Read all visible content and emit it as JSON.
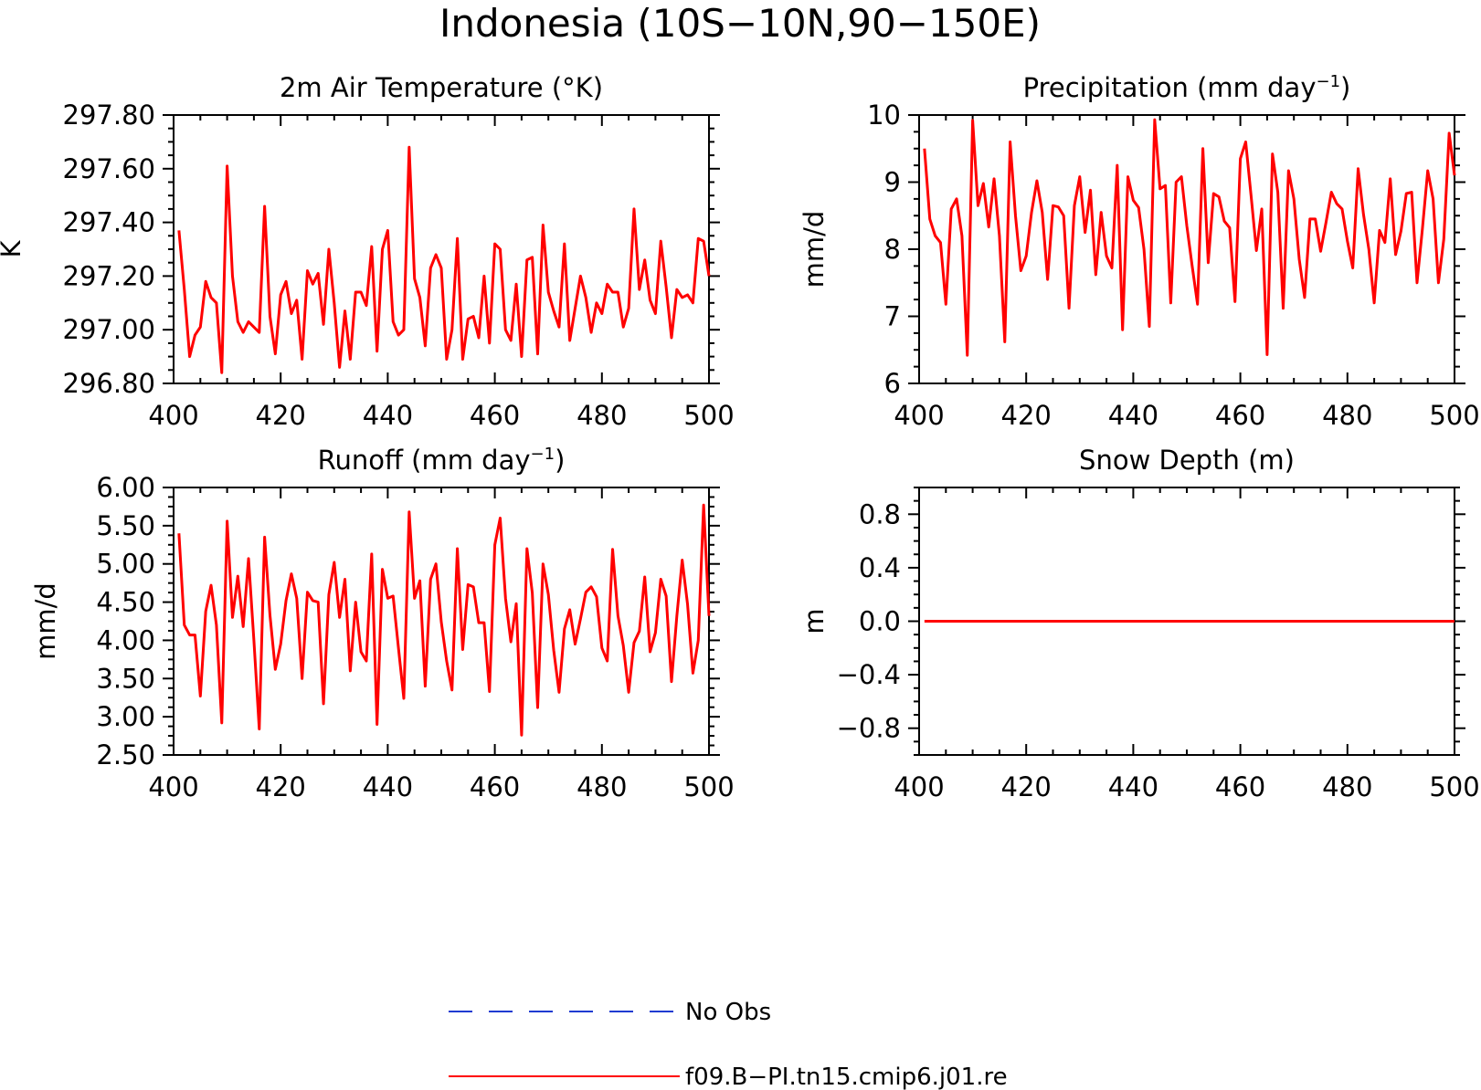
{
  "figure": {
    "title": "Indonesia (10S−10N,90−150E)"
  },
  "legend": {
    "placement": "bottom-center",
    "entries": [
      {
        "label": "No Obs",
        "color": "#1f3bd1",
        "style": "dashed"
      },
      {
        "label": "f09.B−PI.tn15.cmip6.j01.re",
        "color": "#ff0000",
        "style": "solid"
      }
    ]
  },
  "chart_data": [
    {
      "type": "line",
      "title_main": "2m Air Temperature (°K)",
      "title_sup": "",
      "title_tail": "",
      "ylabel": "K",
      "xlim": [
        400,
        500
      ],
      "ylim": [
        296.8,
        297.8
      ],
      "xticks": [
        400,
        420,
        440,
        460,
        480,
        500
      ],
      "yticks": [
        296.8,
        297.0,
        297.2,
        297.4,
        297.6,
        297.8
      ],
      "ytick_labels": [
        "296.80",
        "297.00",
        "297.20",
        "297.40",
        "297.60",
        "297.80"
      ],
      "xtick_labels": [
        "400",
        "420",
        "440",
        "460",
        "480",
        "500"
      ],
      "series": [
        {
          "color": "#ff0000",
          "x_start": 401,
          "values": [
            297.37,
            297.15,
            296.9,
            296.98,
            297.01,
            297.18,
            297.12,
            297.1,
            296.84,
            297.61,
            297.2,
            297.03,
            296.99,
            297.03,
            297.01,
            296.99,
            297.46,
            297.05,
            296.91,
            297.13,
            297.18,
            297.06,
            297.11,
            296.89,
            297.22,
            297.17,
            297.21,
            297.02,
            297.3,
            297.1,
            296.86,
            297.07,
            296.89,
            297.14,
            297.14,
            297.09,
            297.31,
            296.92,
            297.3,
            297.37,
            297.03,
            296.98,
            297.0,
            297.68,
            297.19,
            297.12,
            296.94,
            297.23,
            297.28,
            297.23,
            296.89,
            297.0,
            297.34,
            296.89,
            297.04,
            297.05,
            296.97,
            297.2,
            296.95,
            297.32,
            297.3,
            297.0,
            296.96,
            297.17,
            296.9,
            297.26,
            297.27,
            296.91,
            297.39,
            297.14,
            297.07,
            297.01,
            297.32,
            296.96,
            297.08,
            297.2,
            297.12,
            296.99,
            297.1,
            297.06,
            297.17,
            297.14,
            297.14,
            297.01,
            297.08,
            297.45,
            297.15,
            297.26,
            297.11,
            297.06,
            297.33,
            297.16,
            296.97,
            297.15,
            297.12,
            297.13,
            297.1,
            297.34,
            297.33,
            297.2
          ]
        }
      ]
    },
    {
      "type": "line",
      "title_main": "Precipitation (mm day",
      "title_sup": "−1",
      "title_tail": ")",
      "ylabel": "mm/d",
      "xlim": [
        400,
        500
      ],
      "ylim": [
        6,
        10
      ],
      "xticks": [
        400,
        420,
        440,
        460,
        480,
        500
      ],
      "yticks": [
        6,
        7,
        8,
        9,
        10
      ],
      "ytick_labels": [
        "6",
        "7",
        "8",
        "9",
        "10"
      ],
      "xtick_labels": [
        "400",
        "420",
        "440",
        "460",
        "480",
        "500"
      ],
      "series": [
        {
          "color": "#ff0000",
          "x_start": 401,
          "values": [
            9.5,
            8.45,
            8.2,
            8.1,
            7.18,
            8.6,
            8.75,
            8.2,
            6.42,
            9.92,
            8.65,
            8.98,
            8.33,
            9.05,
            8.2,
            6.62,
            9.6,
            8.5,
            7.68,
            7.9,
            8.55,
            9.02,
            8.55,
            7.55,
            8.65,
            8.63,
            8.5,
            7.12,
            8.65,
            9.08,
            8.25,
            8.88,
            7.62,
            8.55,
            7.9,
            7.72,
            9.25,
            6.8,
            9.08,
            8.73,
            8.62,
            8.0,
            6.85,
            9.93,
            8.9,
            8.95,
            7.2,
            9.0,
            9.08,
            8.35,
            7.75,
            7.18,
            9.5,
            7.8,
            8.83,
            8.78,
            8.42,
            8.32,
            7.22,
            9.35,
            9.6,
            8.8,
            7.98,
            8.6,
            6.43,
            9.42,
            8.85,
            7.12,
            9.17,
            8.75,
            7.85,
            7.28,
            8.45,
            8.45,
            7.97,
            8.4,
            8.85,
            8.68,
            8.6,
            8.12,
            7.72,
            9.2,
            8.52,
            8.0,
            7.2,
            8.28,
            8.1,
            9.05,
            7.92,
            8.27,
            8.83,
            8.85,
            7.5,
            8.3,
            9.17,
            8.75,
            7.5,
            8.15,
            9.73,
            9.1
          ]
        }
      ]
    },
    {
      "type": "line",
      "title_main": "Runoff (mm day",
      "title_sup": "−1",
      "title_tail": ")",
      "ylabel": "mm/d",
      "xlim": [
        400,
        500
      ],
      "ylim": [
        2.5,
        6.0
      ],
      "xticks": [
        400,
        420,
        440,
        460,
        480,
        500
      ],
      "yticks": [
        2.5,
        3.0,
        3.5,
        4.0,
        4.5,
        5.0,
        5.5,
        6.0
      ],
      "ytick_labels": [
        "2.50",
        "3.00",
        "3.50",
        "4.00",
        "4.50",
        "5.00",
        "5.50",
        "6.00"
      ],
      "xtick_labels": [
        "400",
        "420",
        "440",
        "460",
        "480",
        "500"
      ],
      "series": [
        {
          "color": "#ff0000",
          "x_start": 401,
          "values": [
            5.4,
            4.2,
            4.07,
            4.07,
            3.27,
            4.38,
            4.72,
            4.2,
            2.92,
            5.56,
            4.3,
            4.84,
            4.18,
            5.07,
            4.0,
            2.84,
            5.35,
            4.33,
            3.62,
            3.95,
            4.52,
            4.87,
            4.55,
            3.5,
            4.63,
            4.52,
            4.5,
            3.17,
            4.6,
            5.02,
            4.3,
            4.8,
            3.6,
            4.5,
            3.85,
            3.73,
            5.13,
            2.9,
            4.93,
            4.55,
            4.58,
            3.9,
            3.24,
            5.68,
            4.55,
            4.78,
            3.4,
            4.8,
            5.0,
            4.24,
            3.73,
            3.35,
            5.2,
            3.88,
            4.73,
            4.7,
            4.23,
            4.23,
            3.33,
            5.25,
            5.6,
            4.55,
            3.98,
            4.48,
            2.76,
            5.2,
            4.62,
            3.12,
            5.0,
            4.6,
            3.87,
            3.32,
            4.15,
            4.4,
            3.95,
            4.28,
            4.63,
            4.7,
            4.57,
            3.9,
            3.73,
            5.19,
            4.32,
            3.93,
            3.32,
            3.97,
            4.12,
            4.83,
            3.85,
            4.1,
            4.8,
            4.58,
            3.46,
            4.32,
            5.05,
            4.47,
            3.57,
            4.0,
            5.77,
            4.32
          ]
        }
      ]
    },
    {
      "type": "line",
      "title_main": "Snow Depth (m)",
      "title_sup": "",
      "title_tail": "",
      "ylabel": "m",
      "xlim": [
        400,
        500
      ],
      "ylim": [
        -1.0,
        1.0
      ],
      "xticks": [
        400,
        420,
        440,
        460,
        480,
        500
      ],
      "yticks": [
        -0.8,
        -0.4,
        0.0,
        0.4,
        0.8
      ],
      "ytick_labels": [
        "−0.8",
        "−0.4",
        "0.0",
        "0.4",
        "0.8"
      ],
      "xtick_labels": [
        "400",
        "420",
        "440",
        "460",
        "480",
        "500"
      ],
      "series": [
        {
          "color": "#ff0000",
          "x_start": 401,
          "values": [
            0,
            0,
            0,
            0,
            0,
            0,
            0,
            0,
            0,
            0,
            0,
            0,
            0,
            0,
            0,
            0,
            0,
            0,
            0,
            0,
            0,
            0,
            0,
            0,
            0,
            0,
            0,
            0,
            0,
            0,
            0,
            0,
            0,
            0,
            0,
            0,
            0,
            0,
            0,
            0,
            0,
            0,
            0,
            0,
            0,
            0,
            0,
            0,
            0,
            0,
            0,
            0,
            0,
            0,
            0,
            0,
            0,
            0,
            0,
            0,
            0,
            0,
            0,
            0,
            0,
            0,
            0,
            0,
            0,
            0,
            0,
            0,
            0,
            0,
            0,
            0,
            0,
            0,
            0,
            0,
            0,
            0,
            0,
            0,
            0,
            0,
            0,
            0,
            0,
            0,
            0,
            0,
            0,
            0,
            0,
            0,
            0,
            0,
            0,
            0
          ]
        }
      ]
    }
  ]
}
